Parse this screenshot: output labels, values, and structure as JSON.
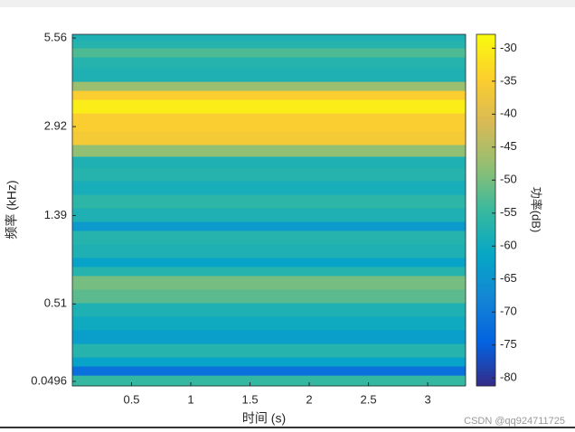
{
  "chart_data": {
    "type": "heatmap",
    "xlabel": "时间 (s)",
    "ylabel": "频率 (kHz)",
    "colorbar_label": "功率(dB)",
    "watermark": "CSDN @qq924711725",
    "colormap": "parula",
    "yscale": "mel",
    "xlim": [
      0,
      3.32
    ],
    "xticks": [
      0.5,
      1,
      1.5,
      2,
      2.5,
      3
    ],
    "ylim": [
      0.029,
      5.704
    ],
    "yticks": [
      0.0496,
      0.51,
      1.39,
      2.92,
      5.56
    ],
    "clim": [
      -81.2,
      -27.9
    ],
    "cticks": [
      -30,
      -35,
      -40,
      -45,
      -50,
      -55,
      -60,
      -65,
      -70,
      -75,
      -80
    ],
    "frequency_edges": [
      0.029,
      0.079,
      0.124,
      0.171,
      0.247,
      0.331,
      0.421,
      0.519,
      0.625,
      0.742,
      0.825,
      0.912,
      1.052,
      1.205,
      1.314,
      1.491,
      1.681,
      1.891,
      2.116,
      2.313,
      2.54,
      2.821,
      3.239,
      3.581,
      3.828,
      4.089,
      4.508,
      4.868,
      5.189,
      5.46,
      5.704
    ],
    "values": [
      -55,
      -72,
      -62,
      -57,
      -63,
      -60,
      -58,
      -52,
      -50,
      -57,
      -62,
      -58,
      -57,
      -64,
      -58,
      -56,
      -59,
      -57,
      -58,
      -48,
      -36,
      -35,
      -30,
      -35,
      -47,
      -58,
      -57,
      -53,
      -57,
      -58
    ]
  }
}
